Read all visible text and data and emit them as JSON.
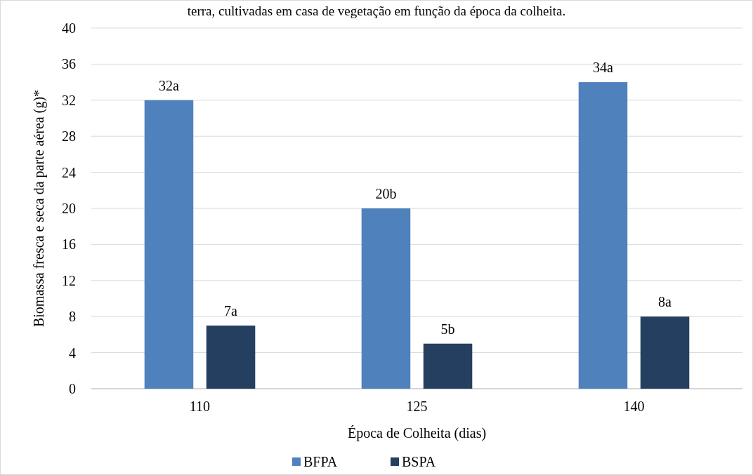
{
  "chart_data": {
    "type": "bar",
    "title": "terra, cultivadas em casa de vegetação em função da época da colheita.",
    "xlabel": "Época de Colheita (dias)",
    "ylabel": "Biomassa fresca e seca da parte aérea (g)*",
    "categories": [
      "110",
      "125",
      "140"
    ],
    "series": [
      {
        "name": "BFPA",
        "color": "#4f81bd",
        "values": [
          32,
          20,
          34
        ],
        "value_labels": [
          "32a",
          "20b",
          "34a"
        ]
      },
      {
        "name": "BSPA",
        "color": "#243f60",
        "values": [
          7,
          5,
          8
        ],
        "value_labels": [
          "7a",
          "5b",
          "8a"
        ]
      }
    ],
    "ylim": [
      0,
      40
    ],
    "yticks": [
      0,
      4,
      8,
      12,
      16,
      20,
      24,
      28,
      32,
      36,
      40
    ],
    "grid": "y",
    "legend": "bottom"
  }
}
